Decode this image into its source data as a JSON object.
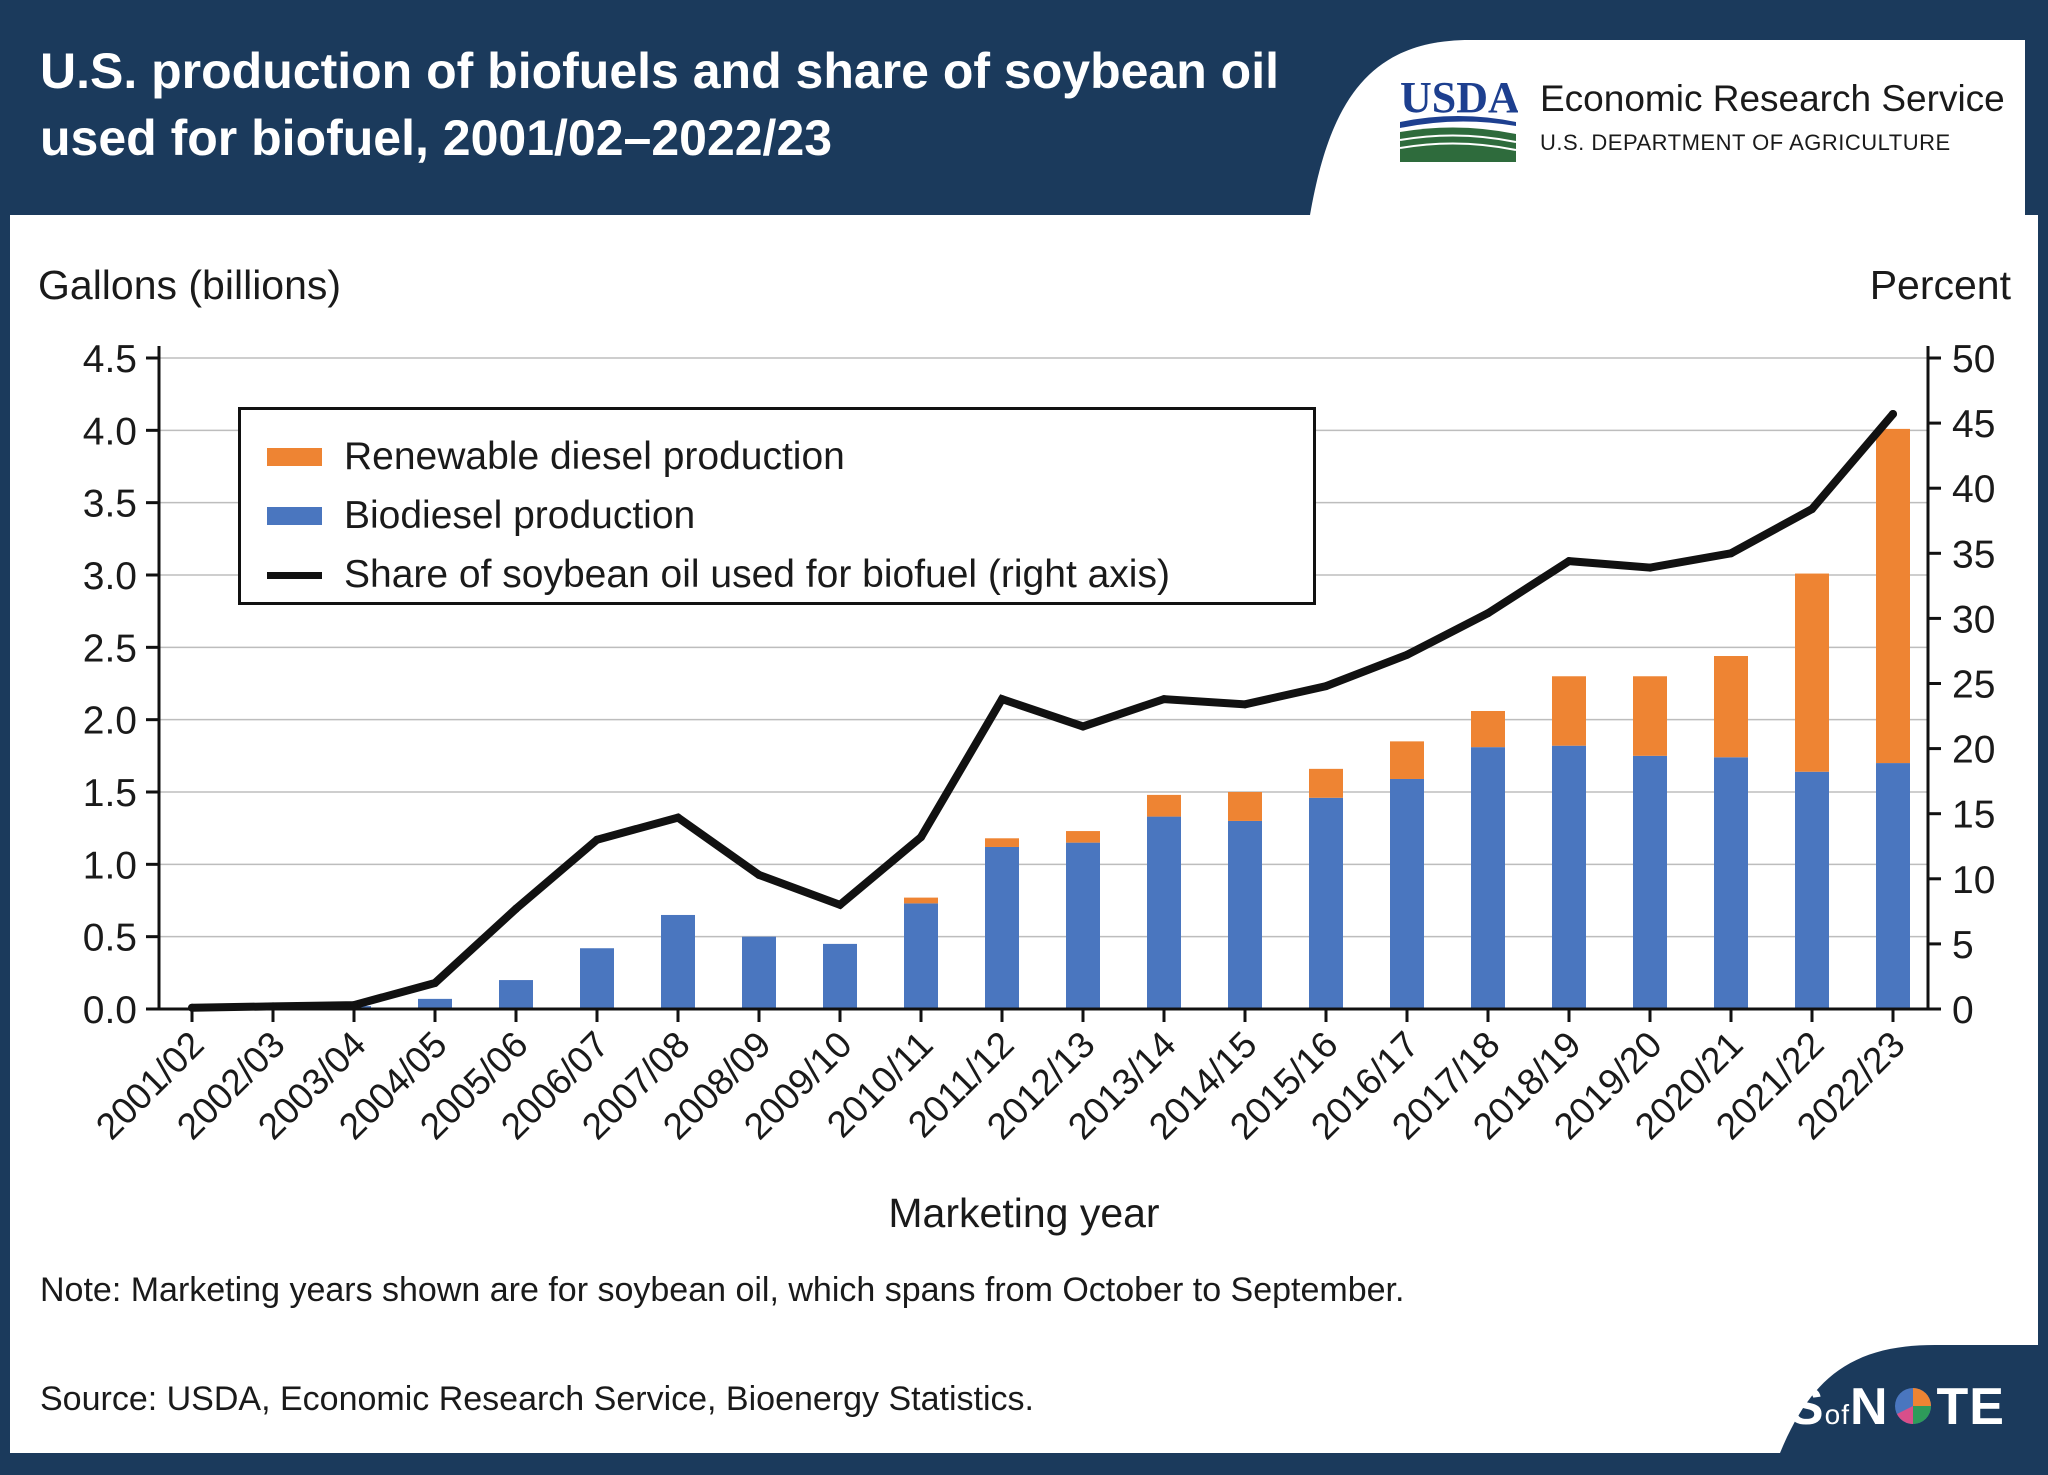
{
  "header": {
    "title": "U.S. production of biofuels and share of soybean oil used for biofuel, 2001/02–2022/23",
    "logo_wordmark": "USDA",
    "agency": "Economic Research Service",
    "department": "U.S. DEPARTMENT OF AGRICULTURE"
  },
  "colors": {
    "renewable_diesel": "#ee8433",
    "biodiesel": "#4a76bf",
    "share_line": "#111111",
    "header_bg": "#1b3a5c",
    "usda_green": "#2e6b3c",
    "usda_blue": "#1d3f8f"
  },
  "chart_data": {
    "type": "bar",
    "stacked": true,
    "categories": [
      "2001/02",
      "2002/03",
      "2003/04",
      "2004/05",
      "2005/06",
      "2006/07",
      "2007/08",
      "2008/09",
      "2009/10",
      "2010/11",
      "2011/12",
      "2012/13",
      "2013/14",
      "2014/15",
      "2015/16",
      "2016/17",
      "2017/18",
      "2018/19",
      "2019/20",
      "2020/21",
      "2021/22",
      "2022/23"
    ],
    "series": [
      {
        "name": "Biodiesel production",
        "axis": "left",
        "type": "bar",
        "values": [
          0.0,
          0.0,
          0.02,
          0.07,
          0.2,
          0.42,
          0.65,
          0.5,
          0.45,
          0.73,
          1.12,
          1.15,
          1.33,
          1.3,
          1.46,
          1.59,
          1.81,
          1.82,
          1.75,
          1.74,
          1.64,
          1.7
        ]
      },
      {
        "name": "Renewable diesel production",
        "axis": "left",
        "type": "bar",
        "values": [
          0,
          0,
          0,
          0,
          0,
          0,
          0,
          0,
          0,
          0.04,
          0.06,
          0.08,
          0.15,
          0.2,
          0.2,
          0.26,
          0.25,
          0.48,
          0.55,
          0.7,
          1.37,
          2.31
        ]
      },
      {
        "name": "Share of soybean oil used for biofuel (right axis)",
        "axis": "right",
        "type": "line",
        "values": [
          0.1,
          0.2,
          0.3,
          2.0,
          7.7,
          13.0,
          14.7,
          10.3,
          8.0,
          13.2,
          23.8,
          21.7,
          23.8,
          23.4,
          24.8,
          27.2,
          30.4,
          34.4,
          33.9,
          35.0,
          38.4,
          45.7
        ]
      }
    ],
    "xlabel": "Marketing year",
    "ylabel": "Gallons (billions)",
    "ylabel_right": "Percent",
    "ylim": [
      0,
      4.5
    ],
    "ylim_right": [
      0,
      50
    ],
    "yticks": [
      "0.0",
      "0.5",
      "1.0",
      "1.5",
      "2.0",
      "2.5",
      "3.0",
      "3.5",
      "4.0",
      "4.5"
    ],
    "yticks_right": [
      "0",
      "5",
      "10",
      "15",
      "20",
      "25",
      "30",
      "35",
      "40",
      "45",
      "50"
    ],
    "grid": "horizontal",
    "legend_position": "top-left"
  },
  "legend": {
    "renewable": "Renewable diesel production",
    "biodiesel": "Biodiesel production",
    "share": "Share of soybean oil used for biofuel (right axis)"
  },
  "footer": {
    "note": "Note: Marketing years shown are for soybean oil, which spans from October to September.",
    "source": "Source: USDA, Economic Research Service, Bioenergy Statistics.",
    "brand_charts": "CHARTS",
    "brand_of": "of",
    "brand_n": "N",
    "brand_te": "TE"
  }
}
